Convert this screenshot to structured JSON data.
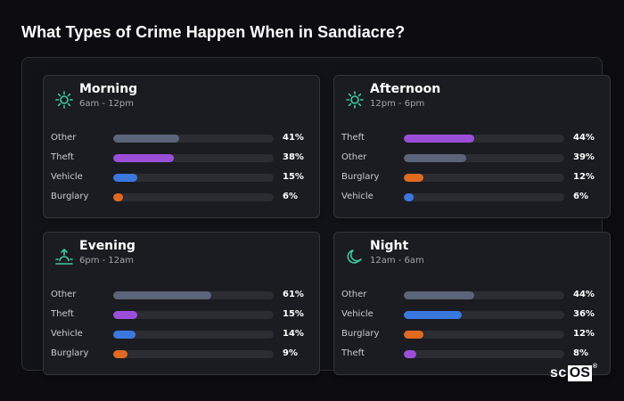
{
  "title": "What Types of Crime Happen When in Sandiacre?",
  "colors": {
    "Other": "#5b6478",
    "Theft": "#9b4fd8",
    "Vehicle": "#3a78e0",
    "Burglary": "#e06a1f",
    "icon": "#3fc9a3"
  },
  "cards": [
    {
      "name": "Morning",
      "time": "6am - 12pm",
      "icon": "sun-icon",
      "rows": [
        {
          "label": "Other",
          "pct": "41%",
          "value": 41
        },
        {
          "label": "Theft",
          "pct": "38%",
          "value": 38
        },
        {
          "label": "Vehicle",
          "pct": "15%",
          "value": 15
        },
        {
          "label": "Burglary",
          "pct": "6%",
          "value": 6
        }
      ]
    },
    {
      "name": "Afternoon",
      "time": "12pm - 6pm",
      "icon": "sun-icon",
      "rows": [
        {
          "label": "Theft",
          "pct": "44%",
          "value": 44
        },
        {
          "label": "Other",
          "pct": "39%",
          "value": 39
        },
        {
          "label": "Burglary",
          "pct": "12%",
          "value": 12
        },
        {
          "label": "Vehicle",
          "pct": "6%",
          "value": 6
        }
      ]
    },
    {
      "name": "Evening",
      "time": "6pm - 12am",
      "icon": "sunset-icon",
      "rows": [
        {
          "label": "Other",
          "pct": "61%",
          "value": 61
        },
        {
          "label": "Theft",
          "pct": "15%",
          "value": 15
        },
        {
          "label": "Vehicle",
          "pct": "14%",
          "value": 14
        },
        {
          "label": "Burglary",
          "pct": "9%",
          "value": 9
        }
      ]
    },
    {
      "name": "Night",
      "time": "12am - 6am",
      "icon": "moon-icon",
      "rows": [
        {
          "label": "Other",
          "pct": "44%",
          "value": 44
        },
        {
          "label": "Vehicle",
          "pct": "36%",
          "value": 36
        },
        {
          "label": "Burglary",
          "pct": "12%",
          "value": 12
        },
        {
          "label": "Theft",
          "pct": "8%",
          "value": 8
        }
      ]
    }
  ],
  "logo": {
    "sc": "sc",
    "os": "OS",
    "reg": "®"
  }
}
